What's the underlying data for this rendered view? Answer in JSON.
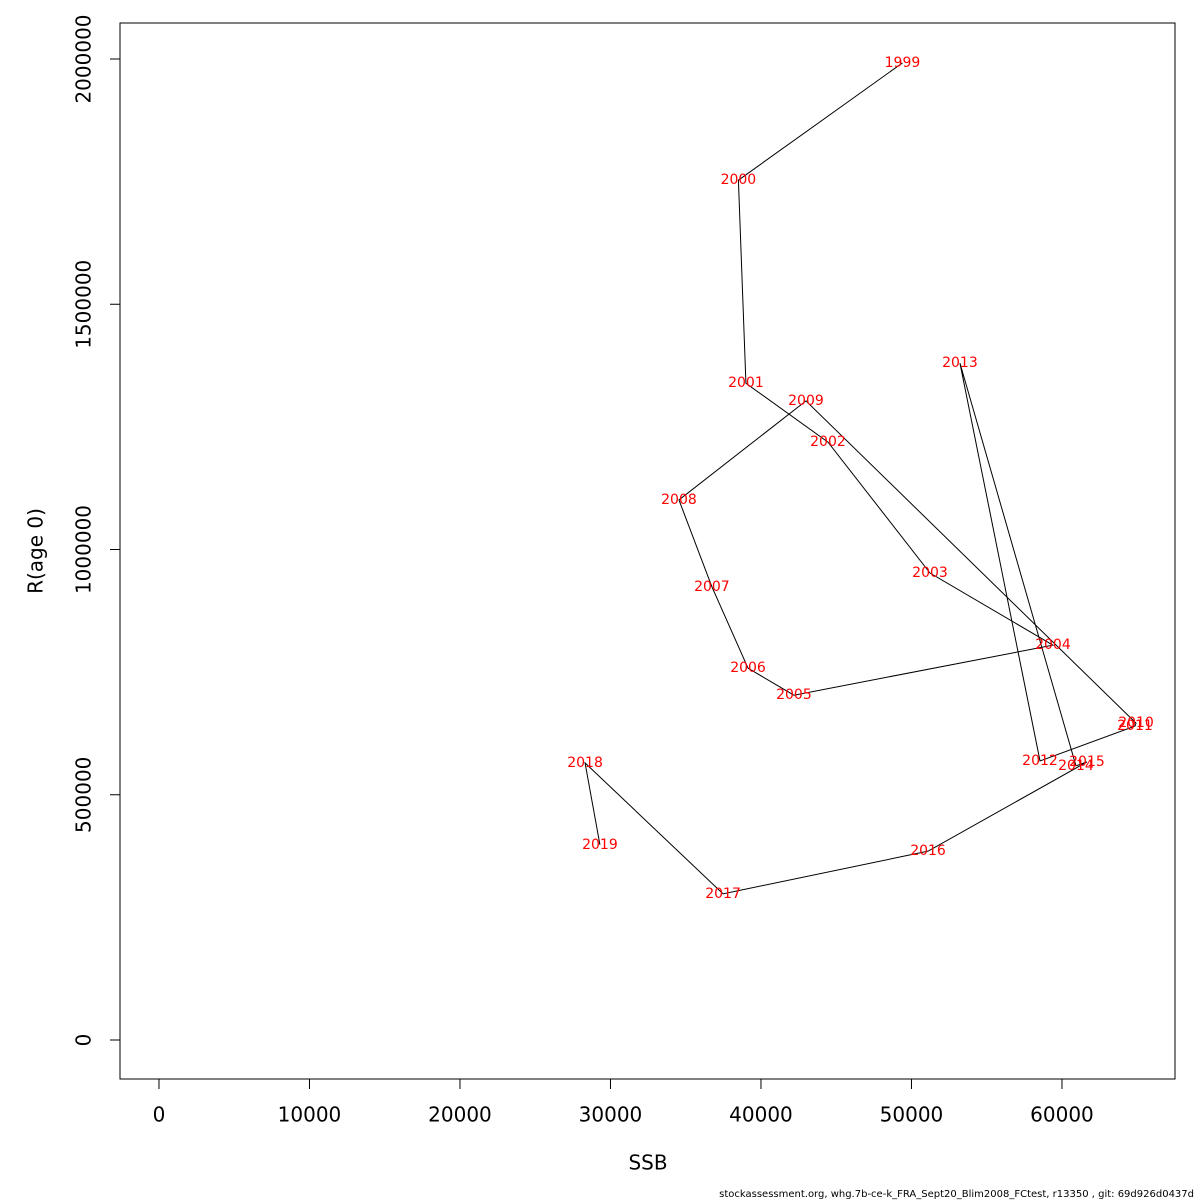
{
  "chart_data": {
    "type": "line",
    "x_label": "SSB",
    "y_label": "R(age 0)",
    "footer": "stockassessment.org, whg.7b-ce-k_FRA_Sept20_Blim2008_FCtest, r13350 , git: 69d926d0437d",
    "labels": [
      "1999",
      "2000",
      "2001",
      "2002",
      "2003",
      "2004",
      "2005",
      "2006",
      "2007",
      "2008",
      "2009",
      "2010",
      "2011",
      "2012",
      "2013",
      "2014",
      "2015",
      "2016",
      "2017",
      "2018",
      "2019"
    ],
    "x": [
      49400,
      38500,
      39000,
      44450,
      51230,
      59400,
      42190,
      39140,
      36740,
      34550,
      42990,
      64920,
      64850,
      58540,
      53220,
      60930,
      61660,
      51100,
      37480,
      28310,
      29300
    ],
    "values": [
      1992000,
      1753000,
      1339000,
      1219000,
      952000,
      805000,
      703000,
      758000,
      924000,
      1101000,
      1303000,
      646000,
      640000,
      569000,
      1380000,
      559000,
      567000,
      385000,
      298000,
      565000,
      398000
    ],
    "line_color": "#000000",
    "label_color": "#ff0000",
    "xlim": [
      -2590,
      67510
    ],
    "ylim": [
      -79500,
      2073400
    ],
    "xticks": [
      0,
      10000,
      20000,
      30000,
      40000,
      50000,
      60000
    ],
    "yticks": [
      0,
      500000,
      1000000,
      1500000,
      2000000
    ]
  }
}
